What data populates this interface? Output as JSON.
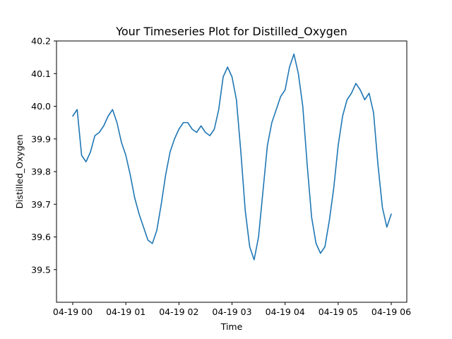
{
  "chart_data": {
    "type": "line",
    "title": "Your Timeseries Plot for Distilled_Oxygen",
    "xlabel": "Time",
    "ylabel": "Distilled_Oxygen",
    "x_tick_labels": [
      "04-19 00",
      "04-19 01",
      "04-19 02",
      "04-19 03",
      "04-19 04",
      "04-19 05",
      "04-19 06"
    ],
    "y_tick_labels": [
      "39.5",
      "39.6",
      "39.7",
      "39.8",
      "39.9",
      "40.0",
      "40.1",
      "40.2"
    ],
    "y_ticks": [
      39.5,
      39.6,
      39.7,
      39.8,
      39.9,
      40.0,
      40.1,
      40.2
    ],
    "xlim": [
      "04-19 00:00",
      "04-19 06:00"
    ],
    "ylim": [
      39.4,
      40.2
    ],
    "grid": false,
    "line_color": "#1f77b4",
    "series": [
      {
        "x": [
          "00:00",
          "00:05",
          "00:10",
          "00:15",
          "00:20",
          "00:25",
          "00:30",
          "00:35",
          "00:40",
          "00:45",
          "00:50",
          "00:55",
          "01:00",
          "01:05",
          "01:10",
          "01:15",
          "01:20",
          "01:25",
          "01:30",
          "01:35",
          "01:40",
          "01:45",
          "01:50",
          "01:55",
          "02:00",
          "02:05",
          "02:10",
          "02:15",
          "02:20",
          "02:25",
          "02:30",
          "02:35",
          "02:40",
          "02:45",
          "02:50",
          "02:55",
          "03:00",
          "03:05",
          "03:10",
          "03:15",
          "03:20",
          "03:25",
          "03:30",
          "03:35",
          "03:40",
          "03:45",
          "03:50",
          "03:55",
          "04:00",
          "04:05",
          "04:10",
          "04:15",
          "04:20",
          "04:25",
          "04:30",
          "04:35",
          "04:40",
          "04:45",
          "04:50",
          "04:55",
          "05:00",
          "05:05",
          "05:10",
          "05:15",
          "05:20",
          "05:25",
          "05:30",
          "05:35",
          "05:40",
          "05:45",
          "05:50",
          "05:55",
          "06:00"
        ],
        "values": [
          39.97,
          39.99,
          39.85,
          39.83,
          39.86,
          39.91,
          39.92,
          39.94,
          39.97,
          39.99,
          39.95,
          39.89,
          39.85,
          39.79,
          39.72,
          39.67,
          39.63,
          39.59,
          39.58,
          39.62,
          39.7,
          39.79,
          39.86,
          39.9,
          39.93,
          39.95,
          39.95,
          39.93,
          39.92,
          39.94,
          39.92,
          39.91,
          39.93,
          39.99,
          40.09,
          40.12,
          40.09,
          40.02,
          39.86,
          39.68,
          39.57,
          39.53,
          39.6,
          39.74,
          39.88,
          39.95,
          39.99,
          40.03,
          40.05,
          40.12,
          40.16,
          40.1,
          40.0,
          39.82,
          39.66,
          39.58,
          39.55,
          39.57,
          39.65,
          39.75,
          39.88,
          39.97,
          40.02,
          40.04,
          40.07,
          40.05,
          40.02,
          40.04,
          39.98,
          39.82,
          39.69,
          39.63,
          39.67
        ]
      }
    ]
  }
}
